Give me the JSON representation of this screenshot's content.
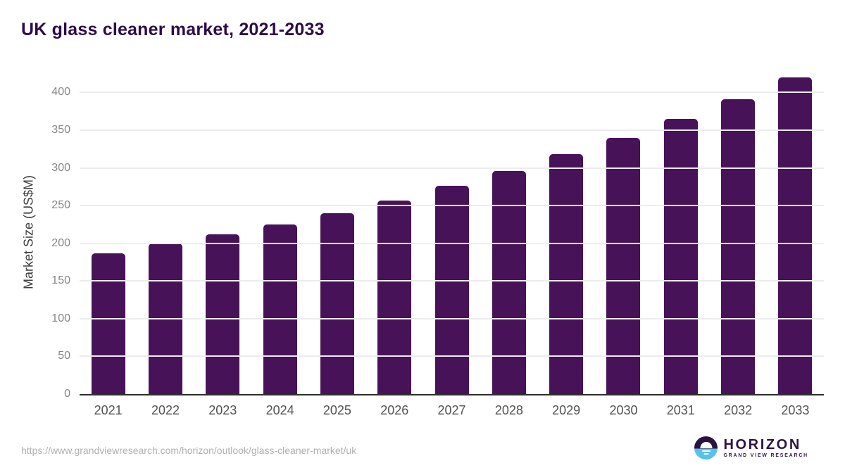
{
  "page": {
    "title": "UK glass cleaner market, 2021-2033",
    "source_url": "https://www.grandviewresearch.com/horizon/outlook/glass-cleaner-market/uk"
  },
  "logo": {
    "brand": "HORIZON",
    "tagline": "GRAND VIEW RESEARCH",
    "icon": "horizon-sun-circle-icon",
    "purple": "#2e1447",
    "blue": "#57c1ec"
  },
  "colors": {
    "bar": "#481258",
    "title_text": "#2d0c49",
    "axis_line": "#2e2e2e",
    "gridline": "#ececec",
    "y_tick_text": "#868686",
    "x_tick_text": "#525252",
    "url_text": "#b0b0b0",
    "background": "#ffffff"
  },
  "chart_data": {
    "type": "bar",
    "title": "UK glass cleaner market, 2021-2033",
    "categories": [
      "2021",
      "2022",
      "2023",
      "2024",
      "2025",
      "2026",
      "2027",
      "2028",
      "2029",
      "2030",
      "2031",
      "2032",
      "2033"
    ],
    "values": [
      187,
      200,
      212,
      225,
      240,
      257,
      276,
      296,
      318,
      340,
      365,
      391,
      420
    ],
    "xlabel": "",
    "ylabel": "Market Size (US$M)",
    "ylim": [
      0,
      420
    ],
    "yticks": [
      0,
      50,
      100,
      150,
      200,
      250,
      300,
      350,
      400
    ],
    "grid": true,
    "legend": false,
    "bar_color": "#481258"
  }
}
